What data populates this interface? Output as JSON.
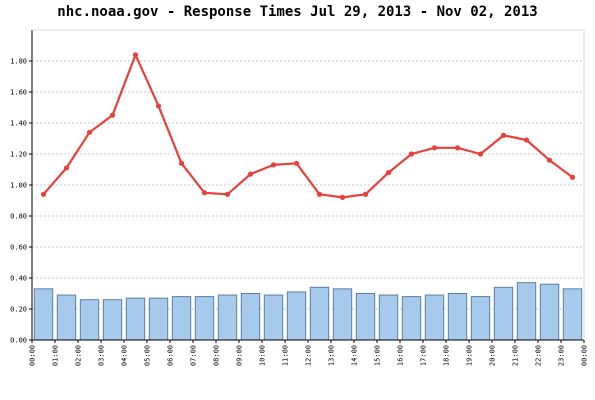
{
  "chart_data": {
    "type": "bar",
    "title": "nhc.noaa.gov - Response Times Jul 29, 2013 - Nov 02, 2013",
    "xlabel": "",
    "ylabel": "",
    "categories": [
      "00:00",
      "01:00",
      "02:00",
      "03:00",
      "04:00",
      "05:00",
      "06:00",
      "07:00",
      "08:00",
      "09:00",
      "10:00",
      "11:00",
      "12:00",
      "13:00",
      "14:00",
      "15:00",
      "16:00",
      "17:00",
      "18:00",
      "19:00",
      "20:00",
      "21:00",
      "22:00",
      "23:00"
    ],
    "end_tick": "00:00",
    "yticks": [
      "0.00",
      "0.20",
      "0.40",
      "0.60",
      "0.80",
      "1.00",
      "1.20",
      "1.40",
      "1.60",
      "1.80"
    ],
    "ylim": [
      0,
      2.0
    ],
    "grid": true,
    "series": [
      {
        "type": "bar",
        "values": [
          0.33,
          0.29,
          0.26,
          0.26,
          0.27,
          0.27,
          0.28,
          0.28,
          0.29,
          0.3,
          0.29,
          0.31,
          0.34,
          0.33,
          0.3,
          0.29,
          0.28,
          0.29,
          0.3,
          0.28,
          0.34,
          0.37,
          0.36,
          0.33
        ],
        "color": "#a7caec",
        "edge_color": "#5b7fa6"
      },
      {
        "type": "line",
        "values": [
          0.94,
          1.11,
          1.34,
          1.45,
          1.84,
          1.51,
          1.14,
          0.95,
          0.94,
          1.07,
          1.13,
          1.14,
          0.94,
          0.92,
          0.94,
          1.08,
          1.2,
          1.24,
          1.24,
          1.2,
          1.32,
          1.29,
          1.16,
          1.05
        ],
        "color": "#e8403a"
      }
    ]
  }
}
